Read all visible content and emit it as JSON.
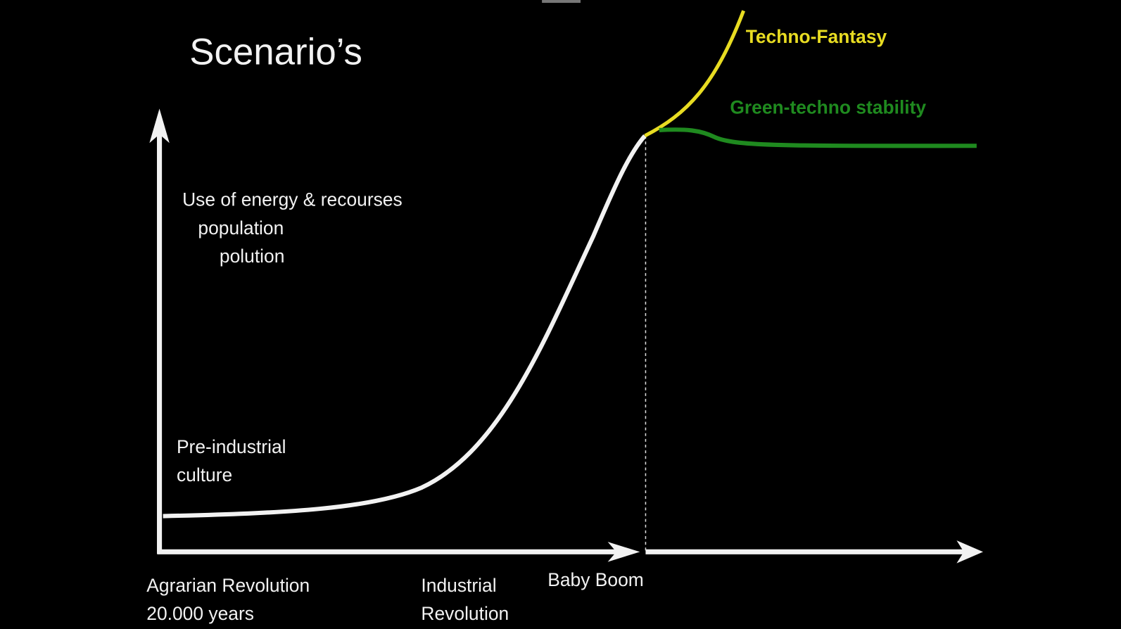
{
  "title": "Scenario’s",
  "y_axis_label": [
    "Use of energy & recourses",
    "population",
    "polution"
  ],
  "annotation": [
    "Pre-industrial",
    "culture"
  ],
  "x_labels": [
    [
      "Agrarian Revolution",
      "20.000 years"
    ],
    [
      "Industrial",
      "Revolution"
    ],
    [
      "Baby Boom"
    ]
  ],
  "scenarios": [
    {
      "label": "Techno-Fantasy"
    },
    {
      "label": "Green-techno stability"
    }
  ]
}
